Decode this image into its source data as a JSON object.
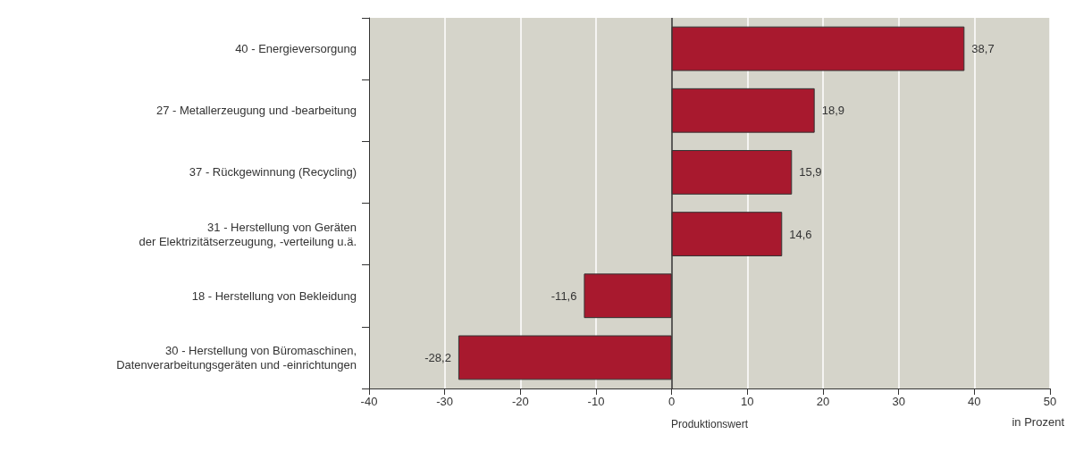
{
  "chart_data": {
    "type": "bar",
    "orientation": "horizontal",
    "xlabel": "Produktionswert",
    "annotations": [
      "in Prozent"
    ],
    "categories": [
      "40 - Energieversorgung",
      "27 - Metallerzeugung und -bearbeitung",
      "37 - Rückgewinnung (Recycling)",
      "31 - Herstellung von Geräten\nder Elektrizitätserzeugung, -verteilung u.ä.",
      "18 - Herstellung von Bekleidung",
      "30 - Herstellung von Büromaschinen,\nDatenverarbeitungsgeräten und -einrichtungen"
    ],
    "values": [
      38.7,
      18.9,
      15.9,
      14.6,
      -11.6,
      -28.2
    ],
    "value_labels": [
      "38,7",
      "18,9",
      "15,9",
      "14,6",
      "-11,6",
      "-28,2"
    ],
    "color": "#a8192e",
    "xlim": [
      -40,
      50
    ],
    "xticks": [
      -40,
      -30,
      -20,
      -10,
      0,
      10,
      20,
      30,
      40,
      50
    ],
    "grid": "x"
  }
}
